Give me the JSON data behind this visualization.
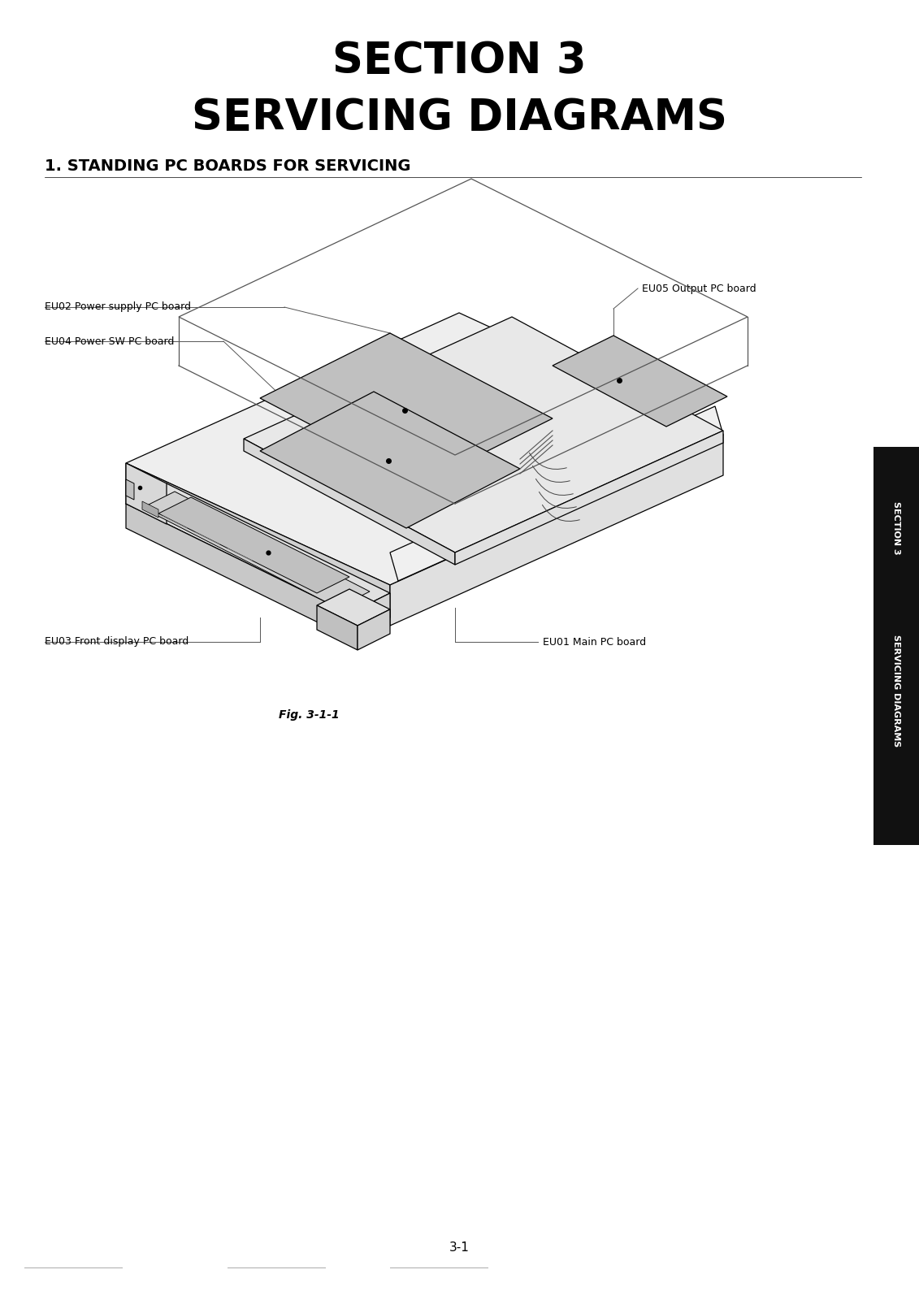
{
  "title_line1": "SECTION 3",
  "title_line2": "SERVICING DIAGRAMS",
  "section_heading": "1. STANDING PC BOARDS FOR SERVICING",
  "fig_caption": "Fig. 3-1-1",
  "page_number": "3-1",
  "sidebar_line1": "SECTION 3",
  "sidebar_line2": "SERVICING DIAGRAMS",
  "labels": {
    "EU02": "EU02 Power supply PC board",
    "EU04": "EU04 Power SW PC board",
    "EU05": "EU05 Output PC board",
    "EU03": "EU03 Front display PC board",
    "EU01": "EU01 Main PC board"
  },
  "bg_color": "#ffffff",
  "text_color": "#000000",
  "sidebar_bg": "#111111",
  "sidebar_text": "#ffffff"
}
